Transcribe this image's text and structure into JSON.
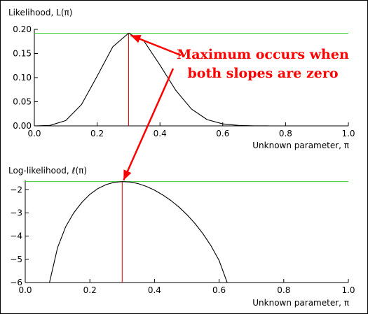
{
  "colors": {
    "curve": "#000000",
    "max_line": "#33cc33",
    "marker": "#cc0000",
    "arrow": "#ff0000",
    "annotation": "#ff0000"
  },
  "annotation": {
    "line1": "Maximum occurs when",
    "line2": "both slopes are zero"
  },
  "chart_data": [
    {
      "type": "line",
      "ylabel": "Likelihood, L(π)",
      "xlabel": "Unknown parameter, π",
      "xlim": [
        0,
        1
      ],
      "ylim": [
        0,
        0.2
      ],
      "x_ticks": [
        "0.0",
        "0.2",
        "0.4",
        "0.6",
        "0.8",
        "1.0"
      ],
      "y_ticks": [
        "0.00",
        "0.05",
        "0.10",
        "0.15",
        "0.20"
      ],
      "max_x": 0.3,
      "max_y": 0.192,
      "series": [
        {
          "x": [
            0.0,
            0.05,
            0.1,
            0.15,
            0.2,
            0.25,
            0.3,
            0.35,
            0.4,
            0.45,
            0.5,
            0.55,
            0.6,
            0.65,
            0.7,
            0.75,
            0.8
          ],
          "values": [
            0.0,
            0.001,
            0.011,
            0.044,
            0.103,
            0.164,
            0.192,
            0.175,
            0.126,
            0.074,
            0.035,
            0.013,
            0.004,
            0.001,
            0.0002,
            0.0,
            0.0
          ]
        }
      ]
    },
    {
      "type": "line",
      "ylabel": "Log-likelihood,  ℓ(π)",
      "xlabel": "Unknown parameter, π",
      "xlim": [
        0,
        1
      ],
      "ylim": [
        -6,
        -1.6
      ],
      "x_ticks": [
        "0.0",
        "0.2",
        "0.4",
        "0.6",
        "0.8",
        "1.0"
      ],
      "y_ticks": [
        "−2",
        "−3",
        "−4",
        "−5",
        "−6"
      ],
      "max_x": 0.3,
      "max_y": -1.65,
      "series": [
        {
          "x": [
            0.075,
            0.1,
            0.125,
            0.15,
            0.175,
            0.2,
            0.225,
            0.25,
            0.275,
            0.3,
            0.325,
            0.35,
            0.375,
            0.4,
            0.425,
            0.45,
            0.475,
            0.5,
            0.525,
            0.55,
            0.575,
            0.6,
            0.625
          ],
          "values": [
            -6.0,
            -4.5,
            -3.6,
            -3.0,
            -2.55,
            -2.2,
            -1.95,
            -1.78,
            -1.68,
            -1.65,
            -1.67,
            -1.74,
            -1.86,
            -2.02,
            -2.22,
            -2.46,
            -2.74,
            -3.07,
            -3.45,
            -3.9,
            -4.42,
            -5.05,
            -6.0
          ]
        }
      ]
    }
  ]
}
